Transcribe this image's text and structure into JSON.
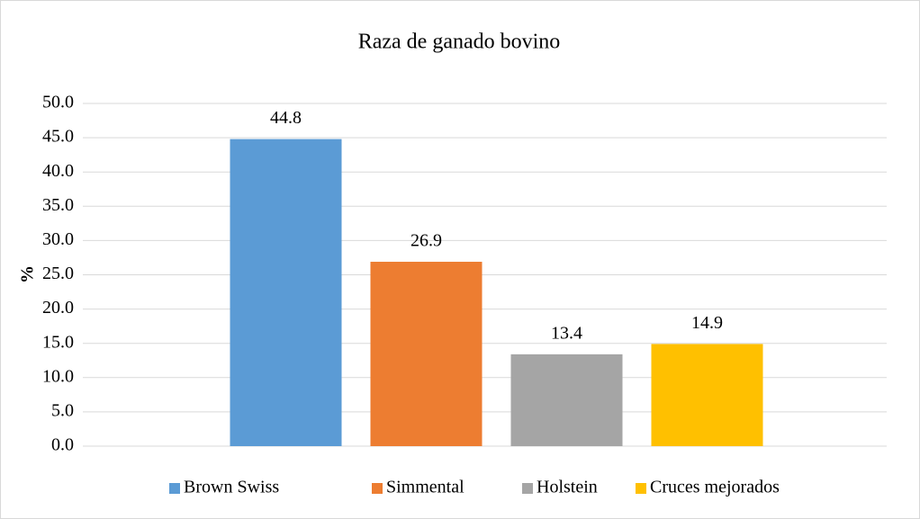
{
  "chart_data": {
    "type": "bar",
    "title": "Raza de ganado bovino",
    "y_label": "%",
    "categories": [
      null
    ],
    "series": [
      {
        "name": "Brown Swiss",
        "color": "#5b9bd5",
        "values": [
          44.8
        ]
      },
      {
        "name": "Simmental",
        "color": "#ed7d31",
        "values": [
          26.9
        ]
      },
      {
        "name": "Holstein",
        "color": "#a5a5a5",
        "values": [
          13.4
        ]
      },
      {
        "name": "Cruces mejorados",
        "color": "#ffc000",
        "values": [
          14.9
        ]
      }
    ],
    "ylim": [
      0,
      50
    ],
    "yticks": [
      {
        "value": 0,
        "label": "0.0"
      },
      {
        "value": 5,
        "label": "5.0"
      },
      {
        "value": 10,
        "label": "10.0"
      },
      {
        "value": 15,
        "label": "15.0"
      },
      {
        "value": 20,
        "label": "20.0"
      },
      {
        "value": 25,
        "label": "25.0"
      },
      {
        "value": 30,
        "label": "30.0"
      },
      {
        "value": 35,
        "label": "35.0"
      },
      {
        "value": 40,
        "label": "40.0"
      },
      {
        "value": 45,
        "label": "45.0"
      },
      {
        "value": 50,
        "label": "50.0"
      }
    ],
    "grid": true,
    "legend": "bottom"
  }
}
